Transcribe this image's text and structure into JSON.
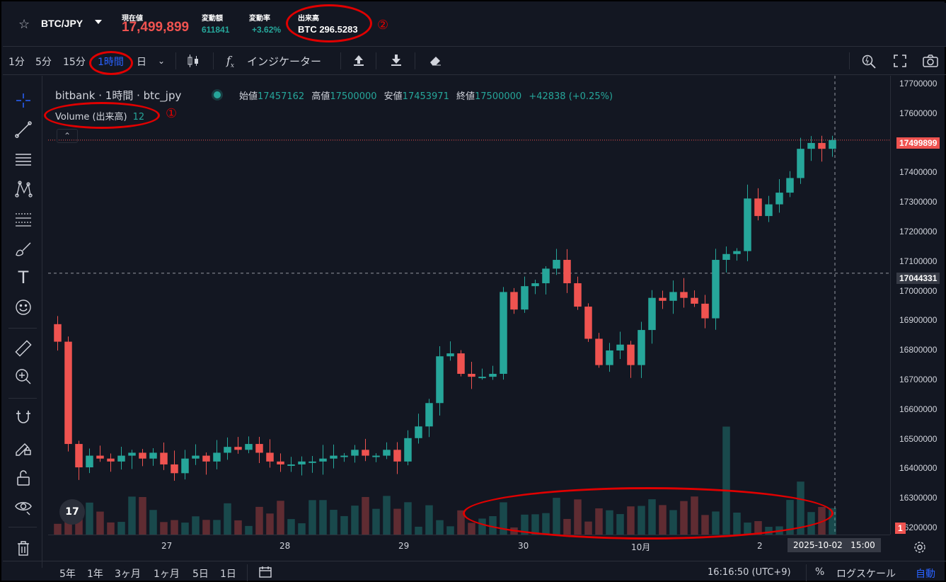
{
  "header": {
    "pair": "BTC/JPY",
    "stats": [
      {
        "label": "現在値",
        "value": "17,499,899",
        "color": "#ef5350"
      },
      {
        "label": "変動額",
        "value": "611841",
        "color": "#26a69a"
      },
      {
        "label": "変動率",
        "value": "+3.62%",
        "color": "#26a69a"
      },
      {
        "label": "出来高",
        "value": "BTC 296.5283",
        "color": "#ffffff"
      }
    ]
  },
  "toolbar": {
    "timeframes": [
      "1分",
      "5分",
      "15分",
      "1時間",
      "日"
    ],
    "active_timeframe": "1時間",
    "indicators_label": "インジケーター"
  },
  "legend": {
    "title": "bitbank · 1時間 · btc_jpy",
    "open_label": "始値",
    "open": "17457162",
    "high_label": "高値",
    "high": "17500000",
    "low_label": "安値",
    "low": "17453971",
    "close_label": "終値",
    "close": "17500000",
    "change": "+42838 (+0.25%)",
    "volume_label": "Volume (出来高)",
    "volume_value": "12"
  },
  "annotations": {
    "one": "①",
    "two": "②"
  },
  "price_axis": {
    "labels": [
      "17700000",
      "17600000",
      "17500000",
      "17400000",
      "17300000",
      "17200000",
      "17100000",
      "17000000",
      "16900000",
      "16800000",
      "16700000",
      "16600000",
      "16500000",
      "16400000",
      "16300000",
      "16200000"
    ],
    "current_price": "17499899",
    "crosshair_price": "17044331",
    "volume_tag": "1"
  },
  "time_axis": {
    "labels": [
      "27",
      "28",
      "29",
      "30",
      "10月",
      "2"
    ],
    "crosshair_time": "2025-10-02   15:00"
  },
  "bottom_bar": {
    "ranges": [
      "5年",
      "1年",
      "3ヶ月",
      "1ヶ月",
      "5日",
      "1日"
    ],
    "clock": "16:16:50 (UTC+9)",
    "percent": "%",
    "log_scale": "ログスケール",
    "auto": "自動"
  },
  "colors": {
    "up": "#26a69a",
    "down": "#ef5350",
    "accent": "#2962ff",
    "annotation": "#e00000"
  },
  "chart_data": {
    "type": "candlestick",
    "symbol": "btc_jpy",
    "interval": "1時間",
    "ylim": [
      16150000,
      17720000
    ],
    "close_points": [
      16810000,
      16460000,
      16380000,
      16420000,
      16410000,
      16400000,
      16420000,
      16430000,
      16410000,
      16430000,
      16390000,
      16360000,
      16410000,
      16420000,
      16400000,
      16430000,
      16450000,
      16440000,
      16460000,
      16430000,
      16400000,
      16390000,
      16390000,
      16400000,
      16400000,
      16410000,
      16420000,
      16420000,
      16440000,
      16420000,
      16420000,
      16440000,
      16400000,
      16480000,
      16520000,
      16600000,
      16760000,
      16770000,
      16700000,
      16690000,
      16690000,
      16700000,
      16980000,
      16920000,
      17000000,
      17010000,
      17060000,
      17090000,
      17010000,
      16930000,
      16820000,
      16730000,
      16780000,
      16800000,
      16730000,
      16850000,
      16960000,
      16950000,
      16980000,
      16960000,
      16940000,
      16890000,
      17090000,
      17110000,
      17120000,
      17300000,
      17240000,
      17280000,
      17320000,
      17370000,
      17470000,
      17490000,
      17470000,
      17500000
    ]
  }
}
